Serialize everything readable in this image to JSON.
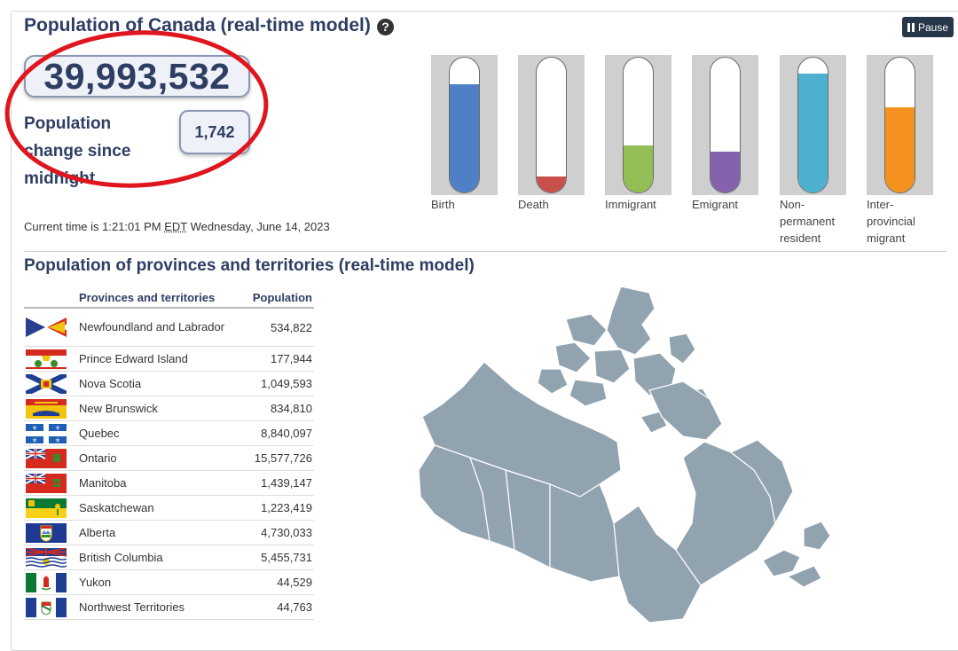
{
  "header": {
    "title": "Population of Canada (real-time model)",
    "help_icon": "?",
    "pause_label": "Pause"
  },
  "population": {
    "total": "39,993,532",
    "change_label": "Population change since midnight",
    "change_value": "1,742"
  },
  "current_time": {
    "prefix": "Current time is 1:21:01 PM",
    "tz": "EDT",
    "date": "Wednesday, June 14, 2023"
  },
  "gauges": [
    {
      "label": "Birth",
      "level": 0.8,
      "color": "#4f7fc4"
    },
    {
      "label": "Death",
      "level": 0.12,
      "color": "#c8504c"
    },
    {
      "label": "Immigrant",
      "level": 0.35,
      "color": "#93bd55"
    },
    {
      "label": "Emigrant",
      "level": 0.3,
      "color": "#8462ac"
    },
    {
      "label": "Non-permanent resident",
      "level": 0.88,
      "color": "#4db0cf"
    },
    {
      "label": "Inter-provincial migrant",
      "level": 0.63,
      "color": "#f5911f"
    }
  ],
  "provinces": {
    "title": "Population of provinces and territories (real-time model)",
    "col_name": "Provinces and territories",
    "col_pop": "Population",
    "rows": [
      {
        "name": "Newfoundland and Labrador",
        "pop": "534,822"
      },
      {
        "name": "Prince Edward Island",
        "pop": "177,944"
      },
      {
        "name": "Nova Scotia",
        "pop": "1,049,593"
      },
      {
        "name": "New Brunswick",
        "pop": "834,810"
      },
      {
        "name": "Quebec",
        "pop": "8,840,097"
      },
      {
        "name": "Ontario",
        "pop": "15,577,726"
      },
      {
        "name": "Manitoba",
        "pop": "1,439,147"
      },
      {
        "name": "Saskatchewan",
        "pop": "1,223,419"
      },
      {
        "name": "Alberta",
        "pop": "4,730,033"
      },
      {
        "name": "British Columbia",
        "pop": "5,455,731"
      },
      {
        "name": "Yukon",
        "pop": "44,529"
      },
      {
        "name": "Northwest Territories",
        "pop": "44,763"
      }
    ]
  },
  "colors": {
    "heading": "#2e3e63",
    "map": "#92a3b0",
    "annotation": "#e0161e"
  }
}
